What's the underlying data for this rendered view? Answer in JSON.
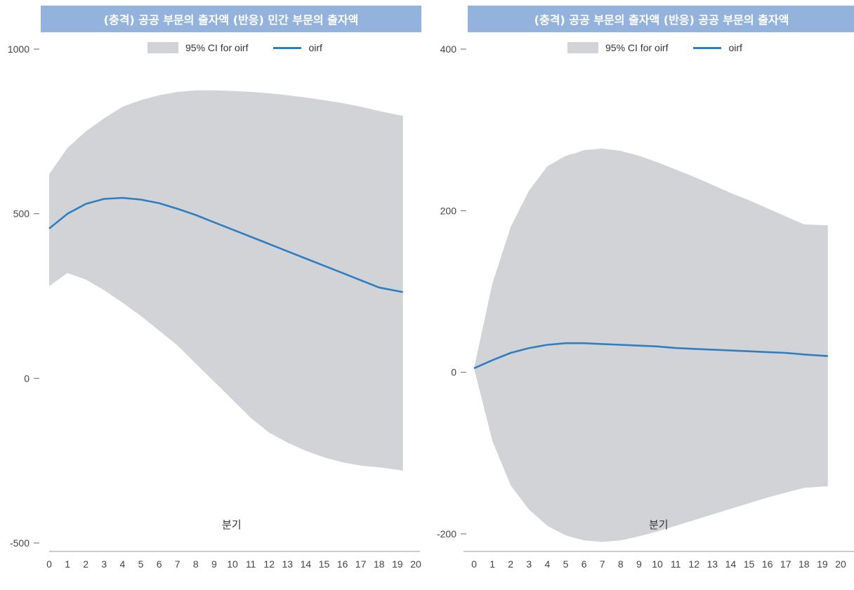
{
  "chart_data": [
    {
      "type": "line",
      "title": "(충격) 공공 부문의 출자액 (반응) 민간 부문의 출자액",
      "xlabel": "분기",
      "ylabel": "",
      "xlim": [
        0,
        20
      ],
      "ylim": [
        -500,
        1000
      ],
      "yticks": [
        "1000",
        "500",
        "0",
        "-500"
      ],
      "xticks": [
        "0",
        "1",
        "2",
        "3",
        "4",
        "5",
        "6",
        "7",
        "8",
        "9",
        "10",
        "11",
        "12",
        "13",
        "14",
        "15",
        "16",
        "17",
        "18",
        "19",
        "20"
      ],
      "legend": [
        "95% CI for oirf",
        "oirf"
      ],
      "legend_position": "top",
      "grid": false,
      "band_name": "95% CI for oirf",
      "series": [
        {
          "name": "oirf",
          "x": [
            0,
            1,
            2,
            3,
            4,
            5,
            6,
            7,
            8,
            9,
            10,
            11,
            12,
            13,
            14,
            15,
            16,
            17,
            18,
            19.3
          ],
          "values": [
            455,
            500,
            530,
            545,
            548,
            543,
            532,
            515,
            496,
            474,
            452,
            430,
            408,
            386,
            364,
            342,
            320,
            298,
            276,
            262
          ]
        }
      ],
      "ci": {
        "x": [
          0,
          1,
          2,
          3,
          4,
          5,
          6,
          7,
          8,
          9,
          10,
          11,
          12,
          13,
          14,
          15,
          16,
          17,
          18,
          19.3
        ],
        "upper": [
          620,
          700,
          750,
          790,
          825,
          845,
          860,
          870,
          875,
          875,
          873,
          870,
          866,
          860,
          853,
          845,
          836,
          825,
          812,
          797
        ],
        "lower": [
          280,
          320,
          300,
          268,
          230,
          190,
          145,
          100,
          45,
          -10,
          -65,
          -120,
          -165,
          -195,
          -220,
          -240,
          -255,
          -265,
          -270,
          -280
        ]
      }
    },
    {
      "type": "line",
      "title": "(충격) 공공 부문의 출자액 (반응) 공공 부문의 출자액",
      "xlabel": "분기",
      "ylabel": "",
      "xlim": [
        0,
        20
      ],
      "ylim": [
        -200,
        400
      ],
      "yticks": [
        "400",
        "200",
        "0",
        "-200"
      ],
      "xticks": [
        "0",
        "1",
        "2",
        "3",
        "4",
        "5",
        "6",
        "7",
        "8",
        "9",
        "10",
        "11",
        "12",
        "13",
        "14",
        "15",
        "16",
        "17",
        "18",
        "19",
        "20"
      ],
      "legend": [
        "95% CI for oirf",
        "oirf"
      ],
      "legend_position": "top",
      "grid": false,
      "band_name": "95% CI for oirf",
      "series": [
        {
          "name": "oirf",
          "x": [
            0,
            1,
            2,
            3,
            4,
            5,
            6,
            7,
            8,
            9,
            10,
            11,
            12,
            13,
            14,
            15,
            16,
            17,
            18,
            19.3
          ],
          "values": [
            5,
            15,
            24,
            30,
            34,
            36,
            36,
            35,
            34,
            33,
            32,
            30,
            29,
            28,
            27,
            26,
            25,
            24,
            22,
            20
          ]
        }
      ],
      "ci": {
        "x": [
          0,
          1,
          2,
          3,
          4,
          5,
          5.5,
          6,
          7,
          8,
          9,
          10,
          11,
          12,
          13,
          14,
          15,
          16,
          17,
          18,
          19.3
        ],
        "upper": [
          5,
          110,
          180,
          225,
          255,
          268,
          271,
          275,
          277,
          274,
          268,
          260,
          251,
          242,
          232,
          222,
          213,
          203,
          193,
          183,
          182
        ],
        "lower": [
          5,
          -85,
          -140,
          -170,
          -190,
          -202,
          -205,
          -208,
          -210,
          -208,
          -203,
          -197,
          -190,
          -183,
          -176,
          -169,
          -162,
          -155,
          -149,
          -143,
          -141
        ]
      }
    }
  ]
}
